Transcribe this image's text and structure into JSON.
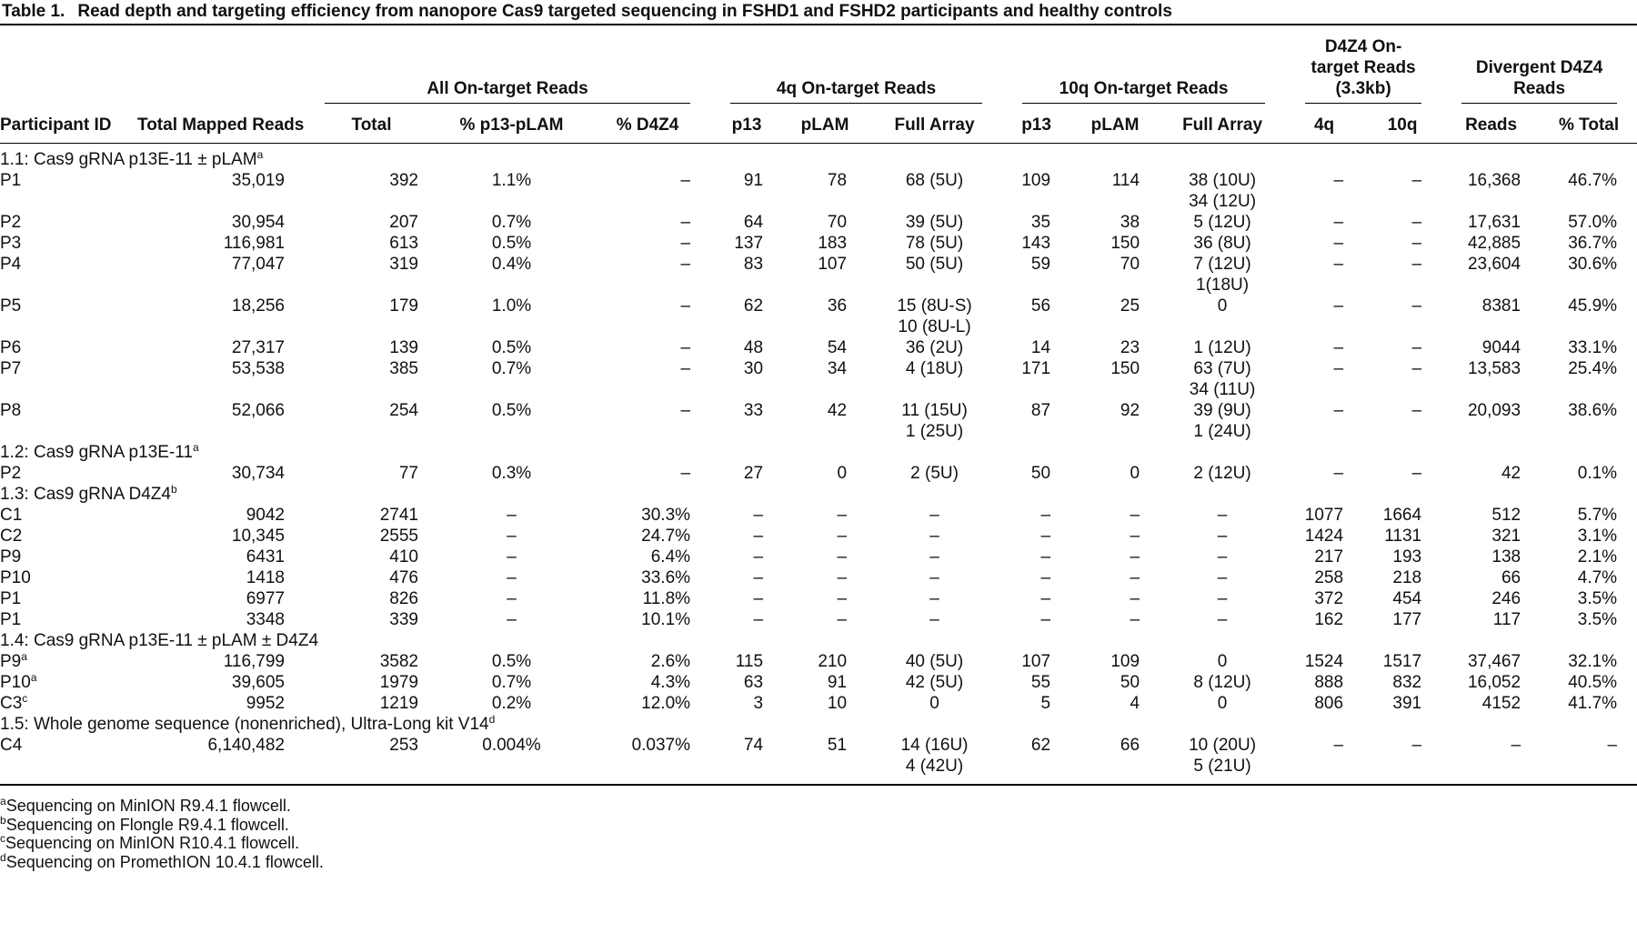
{
  "title": {
    "label": "Table 1.",
    "text": "Read depth and targeting efficiency from nanopore Cas9 targeted sequencing in FSHD1 and FSHD2 participants and healthy controls"
  },
  "header": {
    "groups": [
      [
        "All On-target Reads"
      ],
      [
        "4q On-target Reads"
      ],
      [
        "10q On-target Reads"
      ],
      [
        "D4Z4 On-",
        "target Reads",
        "(3.3kb)"
      ],
      [
        "Divergent D4Z4",
        "Reads"
      ]
    ],
    "columns": [
      "Participant ID",
      "Total Mapped Reads",
      "Total",
      "% p13-pLAM",
      "% D4Z4",
      "p13",
      "pLAM",
      "Full Array",
      "p13",
      "pLAM",
      "Full Array",
      "4q",
      "10q",
      "Reads",
      "% Total"
    ]
  },
  "sections": [
    {
      "label": "1.1: Cas9 gRNA p13E-11 ± pLAM",
      "sup": "a",
      "rows": [
        {
          "id": "P1",
          "cells": [
            "35,019",
            "392",
            "1.1%",
            "–",
            "91",
            "78",
            "68 (5U)",
            "109",
            "114",
            [
              "38 (10U)",
              "34 (12U)"
            ],
            "–",
            "–",
            "16,368",
            "46.7%"
          ]
        },
        {
          "id": "P2",
          "cells": [
            "30,954",
            "207",
            "0.7%",
            "–",
            "64",
            "70",
            "39 (5U)",
            "35",
            "38",
            "5 (12U)",
            "–",
            "–",
            "17,631",
            "57.0%"
          ]
        },
        {
          "id": "P3",
          "cells": [
            "116,981",
            "613",
            "0.5%",
            "–",
            "137",
            "183",
            "78 (5U)",
            "143",
            "150",
            "36 (8U)",
            "–",
            "–",
            "42,885",
            "36.7%"
          ]
        },
        {
          "id": "P4",
          "cells": [
            "77,047",
            "319",
            "0.4%",
            "–",
            "83",
            "107",
            "50 (5U)",
            "59",
            "70",
            [
              "7 (12U)",
              "1(18U)"
            ],
            "–",
            "–",
            "23,604",
            "30.6%"
          ]
        },
        {
          "id": "P5",
          "cells": [
            "18,256",
            "179",
            "1.0%",
            "–",
            "62",
            "36",
            [
              "15 (8U-S)",
              "10 (8U-L)"
            ],
            "56",
            "25",
            "0",
            "–",
            "–",
            "8381",
            "45.9%"
          ]
        },
        {
          "id": "P6",
          "cells": [
            "27,317",
            "139",
            "0.5%",
            "–",
            "48",
            "54",
            "36 (2U)",
            "14",
            "23",
            "1 (12U)",
            "–",
            "–",
            "9044",
            "33.1%"
          ]
        },
        {
          "id": "P7",
          "cells": [
            "53,538",
            "385",
            "0.7%",
            "–",
            "30",
            "34",
            "4 (18U)",
            "171",
            "150",
            [
              "63 (7U)",
              "34 (11U)"
            ],
            "–",
            "–",
            "13,583",
            "25.4%"
          ]
        },
        {
          "id": "P8",
          "cells": [
            "52,066",
            "254",
            "0.5%",
            "–",
            "33",
            "42",
            [
              "11 (15U)",
              "1 (25U)"
            ],
            "87",
            "92",
            [
              "39 (9U)",
              "1 (24U)"
            ],
            "–",
            "–",
            "20,093",
            "38.6%"
          ]
        }
      ]
    },
    {
      "label": "1.2: Cas9 gRNA p13E-11",
      "sup": "a",
      "rows": [
        {
          "id": "P2",
          "cells": [
            "30,734",
            "77",
            "0.3%",
            "–",
            "27",
            "0",
            "2 (5U)",
            "50",
            "0",
            "2 (12U)",
            "–",
            "–",
            "42",
            "0.1%"
          ]
        }
      ]
    },
    {
      "label": "1.3: Cas9 gRNA D4Z4",
      "sup": "b",
      "rows": [
        {
          "id": "C1",
          "cells": [
            "9042",
            "2741",
            "–",
            "30.3%",
            "–",
            "–",
            "–",
            "–",
            "–",
            "–",
            "1077",
            "1664",
            "512",
            "5.7%"
          ]
        },
        {
          "id": "C2",
          "cells": [
            "10,345",
            "2555",
            "–",
            "24.7%",
            "–",
            "–",
            "–",
            "–",
            "–",
            "–",
            "1424",
            "1131",
            "321",
            "3.1%"
          ]
        },
        {
          "id": "P9",
          "cells": [
            "6431",
            "410",
            "–",
            "6.4%",
            "–",
            "–",
            "–",
            "–",
            "–",
            "–",
            "217",
            "193",
            "138",
            "2.1%"
          ]
        },
        {
          "id": "P10",
          "cells": [
            "1418",
            "476",
            "–",
            "33.6%",
            "–",
            "–",
            "–",
            "–",
            "–",
            "–",
            "258",
            "218",
            "66",
            "4.7%"
          ]
        },
        {
          "id": "P1",
          "cells": [
            "6977",
            "826",
            "–",
            "11.8%",
            "–",
            "–",
            "–",
            "–",
            "–",
            "–",
            "372",
            "454",
            "246",
            "3.5%"
          ]
        },
        {
          "id": "P1",
          "cells": [
            "3348",
            "339",
            "–",
            "10.1%",
            "–",
            "–",
            "–",
            "–",
            "–",
            "–",
            "162",
            "177",
            "117",
            "3.5%"
          ]
        }
      ]
    },
    {
      "label": "1.4: Cas9 gRNA p13E-11 ± pLAM ± D4Z4",
      "rows": [
        {
          "id": "P9",
          "sup": "a",
          "cells": [
            "116,799",
            "3582",
            "0.5%",
            "2.6%",
            "115",
            "210",
            "40 (5U)",
            "107",
            "109",
            "0",
            "1524",
            "1517",
            "37,467",
            "32.1%"
          ]
        },
        {
          "id": "P10",
          "sup": "a",
          "cells": [
            "39,605",
            "1979",
            "0.7%",
            "4.3%",
            "63",
            "91",
            "42 (5U)",
            "55",
            "50",
            "8 (12U)",
            "888",
            "832",
            "16,052",
            "40.5%"
          ]
        },
        {
          "id": "C3",
          "sup": "c",
          "cells": [
            "9952",
            "1219",
            "0.2%",
            "12.0%",
            "3",
            "10",
            "0",
            "5",
            "4",
            "0",
            "806",
            "391",
            "4152",
            "41.7%"
          ]
        }
      ]
    },
    {
      "label": "1.5: Whole genome sequence (nonenriched), Ultra-Long kit V14",
      "sup": "d",
      "rows": [
        {
          "id": "C4",
          "cells": [
            "6,140,482",
            "253",
            "0.004%",
            "0.037%",
            "74",
            "51",
            [
              "14 (16U)",
              "4 (42U)"
            ],
            "62",
            "66",
            [
              "10 (20U)",
              "5 (21U)"
            ],
            "–",
            "–",
            "–",
            "–"
          ]
        }
      ]
    }
  ],
  "footnotes": [
    {
      "sup": "a",
      "text": "Sequencing on MinION R9.4.1 flowcell."
    },
    {
      "sup": "b",
      "text": "Sequencing on Flongle R9.4.1 flowcell."
    },
    {
      "sup": "c",
      "text": "Sequencing on MinION R10.4.1 flowcell."
    },
    {
      "sup": "d",
      "text": "Sequencing on PromethION 10.4.1 flowcell."
    }
  ]
}
